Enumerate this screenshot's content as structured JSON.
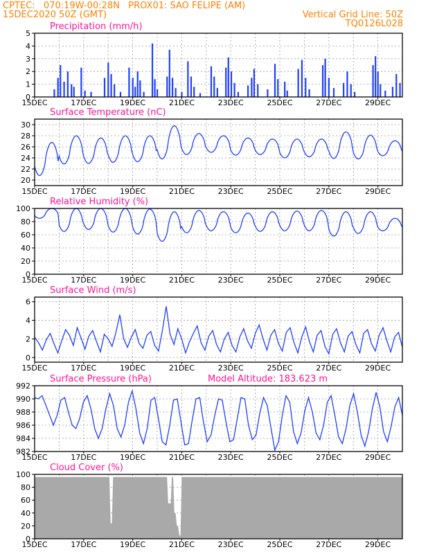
{
  "header": {
    "line1_left": "CPTEC:   070:19W-00:28N   PROX01: SAO FELIPE (AM)",
    "line2_left": "15DEC2020 50Z (GMT)",
    "line2_right": "Vertical Grid Line: 50Z",
    "line3_right": "TQ0126L028"
  },
  "colors": {
    "header": "#ff8000",
    "title": "#ff1493",
    "series": "#1f3fff",
    "cloud": "#a9a9a9",
    "grid": "#9a9a9a"
  },
  "x_labels": [
    "15DEC",
    "17DEC",
    "19DEC",
    "21DEC",
    "23DEC",
    "25DEC",
    "27DEC",
    "29DEC"
  ],
  "chart_data": [
    {
      "type": "bar",
      "title": "Precipitation (mm/h)",
      "ylim": [
        0,
        5
      ],
      "yticks": [
        "0",
        "1",
        "2",
        "3",
        "4",
        "5"
      ],
      "events": [
        {
          "day": 0.8,
          "v": 0.6
        },
        {
          "day": 0.95,
          "v": 1.5
        },
        {
          "day": 1.05,
          "v": 2.5
        },
        {
          "day": 1.2,
          "v": 1.2
        },
        {
          "day": 1.35,
          "v": 2.0
        },
        {
          "day": 1.5,
          "v": 1.0
        },
        {
          "day": 1.6,
          "v": 0.8
        },
        {
          "day": 1.9,
          "v": 2.3
        },
        {
          "day": 2.05,
          "v": 0.5
        },
        {
          "day": 2.3,
          "v": 0.4
        },
        {
          "day": 2.85,
          "v": 1.5
        },
        {
          "day": 3.0,
          "v": 2.7
        },
        {
          "day": 3.12,
          "v": 1.8
        },
        {
          "day": 3.25,
          "v": 1.0
        },
        {
          "day": 3.5,
          "v": 0.4
        },
        {
          "day": 3.85,
          "v": 2.3
        },
        {
          "day": 4.0,
          "v": 1.5
        },
        {
          "day": 4.1,
          "v": 0.8
        },
        {
          "day": 4.2,
          "v": 2.0
        },
        {
          "day": 4.3,
          "v": 1.3
        },
        {
          "day": 4.45,
          "v": 0.4
        },
        {
          "day": 4.8,
          "v": 4.2
        },
        {
          "day": 4.9,
          "v": 1.4
        },
        {
          "day": 5.0,
          "v": 0.6
        },
        {
          "day": 5.4,
          "v": 1.6
        },
        {
          "day": 5.5,
          "v": 3.7
        },
        {
          "day": 5.62,
          "v": 1.5
        },
        {
          "day": 5.75,
          "v": 0.7
        },
        {
          "day": 6.0,
          "v": 0.4
        },
        {
          "day": 6.25,
          "v": 2.8
        },
        {
          "day": 6.38,
          "v": 1.6
        },
        {
          "day": 6.5,
          "v": 0.8
        },
        {
          "day": 6.75,
          "v": 0.3
        },
        {
          "day": 7.2,
          "v": 2.4
        },
        {
          "day": 7.32,
          "v": 1.6
        },
        {
          "day": 7.45,
          "v": 0.7
        },
        {
          "day": 7.8,
          "v": 2.3
        },
        {
          "day": 7.9,
          "v": 3.1
        },
        {
          "day": 8.02,
          "v": 2.0
        },
        {
          "day": 8.15,
          "v": 1.1
        },
        {
          "day": 8.3,
          "v": 0.4
        },
        {
          "day": 8.7,
          "v": 0.9
        },
        {
          "day": 8.85,
          "v": 1.5
        },
        {
          "day": 8.95,
          "v": 2.2
        },
        {
          "day": 9.1,
          "v": 1.0
        },
        {
          "day": 9.5,
          "v": 0.6
        },
        {
          "day": 9.8,
          "v": 2.6
        },
        {
          "day": 9.92,
          "v": 1.4
        },
        {
          "day": 10.2,
          "v": 1.2
        },
        {
          "day": 10.3,
          "v": 0.5
        },
        {
          "day": 10.75,
          "v": 2.2
        },
        {
          "day": 10.9,
          "v": 2.9
        },
        {
          "day": 11.05,
          "v": 1.5
        },
        {
          "day": 11.2,
          "v": 0.6
        },
        {
          "day": 11.75,
          "v": 2.5
        },
        {
          "day": 11.85,
          "v": 3.0
        },
        {
          "day": 12.0,
          "v": 1.5
        },
        {
          "day": 12.2,
          "v": 0.7
        },
        {
          "day": 12.6,
          "v": 1.1
        },
        {
          "day": 12.75,
          "v": 2.0
        },
        {
          "day": 12.9,
          "v": 1.0
        },
        {
          "day": 13.05,
          "v": 0.4
        },
        {
          "day": 13.8,
          "v": 2.5
        },
        {
          "day": 13.9,
          "v": 3.2
        },
        {
          "day": 14.0,
          "v": 2.0
        },
        {
          "day": 14.1,
          "v": 1.0
        },
        {
          "day": 14.3,
          "v": 0.5
        },
        {
          "day": 14.6,
          "v": 0.8
        },
        {
          "day": 14.75,
          "v": 1.8
        },
        {
          "day": 14.9,
          "v": 1.1
        }
      ]
    },
    {
      "type": "line",
      "title": "Surface Temperature (nC)",
      "ylim": [
        19,
        31
      ],
      "yticks": [
        "20",
        "22",
        "24",
        "26",
        "28",
        "30"
      ],
      "daily": [
        {
          "min": 20.8,
          "max": 26.8
        },
        {
          "min": 22.9,
          "max": 28.0
        },
        {
          "min": 23.0,
          "max": 27.6
        },
        {
          "min": 23.2,
          "max": 28.0
        },
        {
          "min": 23.3,
          "max": 28.0
        },
        {
          "min": 23.8,
          "max": 29.8
        },
        {
          "min": 24.6,
          "max": 28.4
        },
        {
          "min": 25.0,
          "max": 28.0
        },
        {
          "min": 24.5,
          "max": 27.6
        },
        {
          "min": 24.6,
          "max": 27.4
        },
        {
          "min": 24.0,
          "max": 27.4
        },
        {
          "min": 24.2,
          "max": 27.4
        },
        {
          "min": 23.9,
          "max": 28.7
        },
        {
          "min": 23.8,
          "max": 28.1
        },
        {
          "min": 24.4,
          "max": 27.1
        }
      ]
    },
    {
      "type": "line",
      "title": "Relative Humidity (%)",
      "ylim": [
        0,
        100
      ],
      "yticks": [
        "0",
        "20",
        "40",
        "60",
        "80",
        "100"
      ],
      "daily": [
        {
          "min": 85,
          "max": 100
        },
        {
          "min": 65,
          "max": 100
        },
        {
          "min": 68,
          "max": 100
        },
        {
          "min": 64,
          "max": 100
        },
        {
          "min": 61,
          "max": 99
        },
        {
          "min": 50,
          "max": 95
        },
        {
          "min": 63,
          "max": 97
        },
        {
          "min": 66,
          "max": 95
        },
        {
          "min": 63,
          "max": 93
        },
        {
          "min": 65,
          "max": 95
        },
        {
          "min": 66,
          "max": 96
        },
        {
          "min": 66,
          "max": 97
        },
        {
          "min": 58,
          "max": 95
        },
        {
          "min": 62,
          "max": 95
        },
        {
          "min": 66,
          "max": 85
        }
      ]
    },
    {
      "type": "line",
      "title": "Surface Wind (m/s)",
      "ylim": [
        -0.5,
        6.5
      ],
      "yticks": [
        "0",
        "2",
        "4",
        "6"
      ],
      "values": [
        2.2,
        1.6,
        0.8,
        1.9,
        2.6,
        1.5,
        0.5,
        1.8,
        3.0,
        2.4,
        1.3,
        3.2,
        2.1,
        0.9,
        2.3,
        2.9,
        1.7,
        0.6,
        2.5,
        2.0,
        1.2,
        2.7,
        4.6,
        2.0,
        1.1,
        2.2,
        3.0,
        1.5,
        1.0,
        2.4,
        2.8,
        1.3,
        0.7,
        2.9,
        5.5,
        2.5,
        1.4,
        3.1,
        2.0,
        0.5,
        1.7,
        2.6,
        3.4,
        1.6,
        0.8,
        2.3,
        2.9,
        1.4,
        0.6,
        2.0,
        2.7,
        1.3,
        0.6,
        2.2,
        3.1,
        1.8,
        1.0,
        2.6,
        3.5,
        2.0,
        0.8,
        2.4,
        3.0,
        1.5,
        0.7,
        2.7,
        3.2,
        1.6,
        0.5,
        2.2,
        3.3,
        1.7,
        0.6,
        2.4,
        2.9,
        1.2,
        0.4,
        2.5,
        3.1,
        1.6,
        0.6,
        2.3,
        2.8,
        1.4,
        0.5,
        2.6,
        3.0,
        1.5,
        0.7,
        2.4,
        3.2,
        1.8,
        0.6,
        2.2,
        2.7,
        1.1
      ]
    },
    {
      "type": "line",
      "title": "Surface Pressure (hPa)",
      "annotation": "Model Altitude: 183.623  m",
      "ylim": [
        982,
        992
      ],
      "yticks": [
        "982",
        "984",
        "986",
        "988",
        "990",
        "992"
      ],
      "values": [
        990.2,
        990.0,
        990.5,
        989.0,
        987.5,
        986.0,
        987.5,
        989.8,
        990.2,
        988.0,
        986.0,
        985.5,
        987.0,
        989.5,
        990.5,
        988.5,
        985.5,
        984.0,
        985.5,
        988.5,
        990.8,
        989.0,
        985.5,
        984.2,
        986.0,
        989.5,
        991.2,
        988.5,
        984.8,
        983.2,
        985.5,
        989.8,
        990.2,
        987.0,
        983.5,
        983.0,
        986.0,
        989.8,
        990.0,
        986.5,
        983.0,
        983.2,
        986.8,
        990.0,
        990.2,
        986.5,
        983.5,
        984.5,
        987.5,
        990.0,
        989.8,
        986.5,
        983.5,
        983.8,
        987.0,
        990.2,
        990.0,
        986.0,
        983.8,
        984.5,
        987.8,
        990.2,
        989.0,
        985.5,
        982.2,
        983.5,
        987.5,
        990.5,
        989.5,
        985.0,
        983.2,
        984.8,
        988.2,
        990.2,
        988.0,
        984.8,
        983.8,
        986.0,
        989.5,
        990.5,
        987.5,
        984.2,
        983.2,
        985.5,
        989.0,
        990.8,
        988.0,
        984.5,
        982.8,
        985.0,
        988.5,
        991.0,
        988.8,
        985.0,
        983.5,
        985.8,
        988.8,
        990.2,
        987.5
      ]
    },
    {
      "type": "area",
      "title": "Cloud Cover (%)",
      "ylim": [
        0,
        100
      ],
      "yticks": [
        "0",
        "20",
        "40",
        "60",
        "80",
        "100"
      ],
      "baseline": 96,
      "dips": [
        {
          "day": 3.15,
          "v": 24
        },
        {
          "day": 5.5,
          "v": 55
        },
        {
          "day": 5.75,
          "v": 40
        },
        {
          "day": 5.82,
          "v": 20
        },
        {
          "day": 5.9,
          "v": 5
        }
      ]
    }
  ]
}
